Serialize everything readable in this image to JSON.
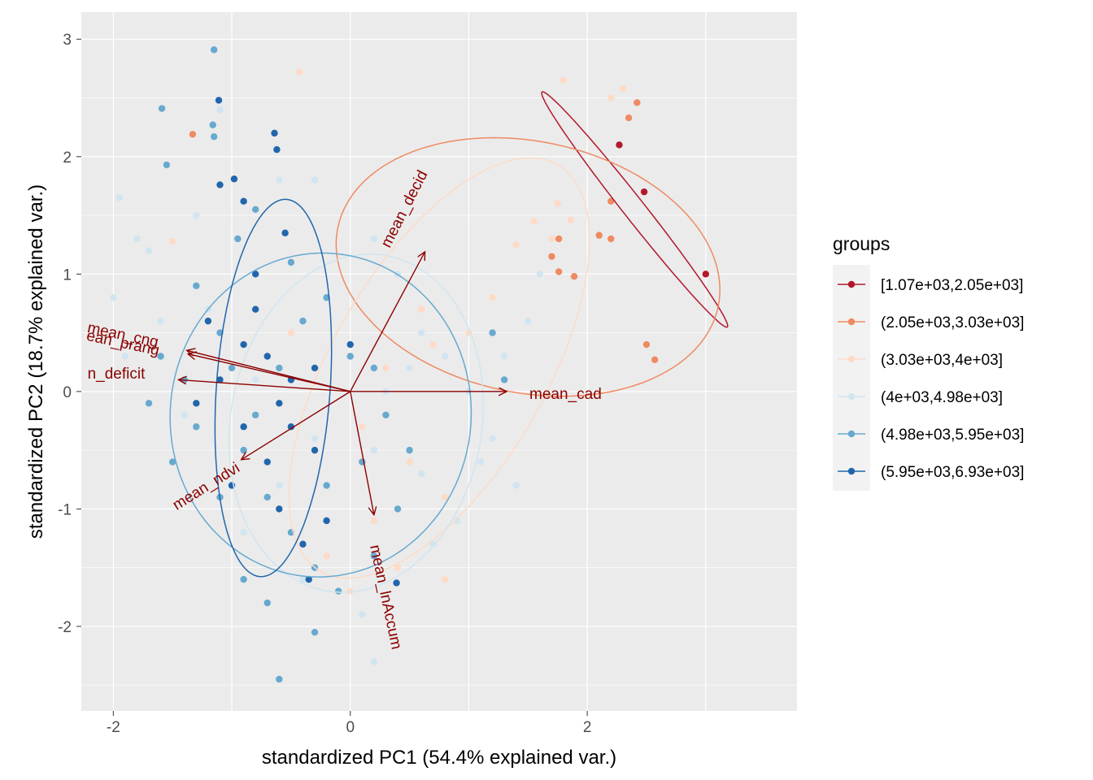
{
  "chart_data": {
    "type": "scatter",
    "xlabel": "standardized PC1 (54.4% explained var.)",
    "ylabel": "standardized PC2 (18.7% explained var.)",
    "xlim": [
      -2.27,
      3.77
    ],
    "ylim": [
      -2.72,
      3.23
    ],
    "x_ticks": [
      -2,
      0,
      2
    ],
    "y_ticks": [
      -2,
      -1,
      0,
      1,
      2,
      3
    ],
    "grid": true,
    "legend_position": "right",
    "legend_title": "groups",
    "series": [
      {
        "name": "[1.07e+03,2.05e+03]",
        "color": "#b2182b",
        "points": [
          [
            2.27,
            2.1
          ],
          [
            2.48,
            1.7
          ],
          [
            3.0,
            1.0
          ]
        ],
        "ellipse": {
          "cx": 2.4,
          "cy": 1.55,
          "rx": 1.27,
          "ry": 0.09,
          "angle": -52
        }
      },
      {
        "name": "(2.05e+03,3.03e+03]",
        "color": "#ef8a62",
        "points": [
          [
            -1.33,
            2.19
          ],
          [
            2.42,
            2.46
          ],
          [
            2.35,
            2.33
          ],
          [
            2.2,
            1.62
          ],
          [
            2.1,
            1.33
          ],
          [
            2.2,
            1.3
          ],
          [
            1.76,
            1.3
          ],
          [
            1.7,
            1.15
          ],
          [
            1.76,
            1.02
          ],
          [
            1.89,
            0.98
          ],
          [
            2.5,
            0.4
          ],
          [
            2.57,
            0.27
          ]
        ],
        "ellipse": {
          "cx": 1.5,
          "cy": 1.06,
          "rx": 1.64,
          "ry": 1.07,
          "angle": -12
        }
      },
      {
        "name": "(3.03e+03,4e+03]",
        "color": "#fddbc7",
        "points": [
          [
            -0.43,
            2.72
          ],
          [
            1.8,
            2.65
          ],
          [
            2.2,
            2.5
          ],
          [
            2.3,
            2.58
          ],
          [
            1.75,
            1.6
          ],
          [
            1.86,
            1.46
          ],
          [
            1.55,
            1.45
          ],
          [
            1.7,
            1.3
          ],
          [
            1.4,
            1.25
          ],
          [
            0.6,
            0.7
          ],
          [
            1.0,
            0.5
          ],
          [
            0.7,
            0.4
          ],
          [
            0.3,
            0.2
          ],
          [
            -1.5,
            1.28
          ],
          [
            -0.5,
            0.5
          ],
          [
            0.1,
            -0.3
          ],
          [
            0.5,
            -0.6
          ],
          [
            0.8,
            -0.9
          ],
          [
            -0.2,
            -1.4
          ],
          [
            0.4,
            -1.5
          ],
          [
            0.8,
            -1.6
          ],
          [
            0.0,
            -1.7
          ],
          [
            0.2,
            -1.1
          ],
          [
            1.2,
            0.8
          ]
        ],
        "ellipse": {
          "cx": 0.75,
          "cy": 0.2,
          "rx": 2.0,
          "ry": 0.9,
          "angle": 60
        }
      },
      {
        "name": "(4e+03,4.98e+03]",
        "color": "#d1e5f0",
        "points": [
          [
            -1.95,
            1.65
          ],
          [
            -2.0,
            0.8
          ],
          [
            -1.8,
            1.3
          ],
          [
            -1.7,
            1.2
          ],
          [
            -1.9,
            0.3
          ],
          [
            -1.1,
            2.4
          ],
          [
            -0.6,
            1.8
          ],
          [
            -0.3,
            1.8
          ],
          [
            0.2,
            1.3
          ],
          [
            0.4,
            1.0
          ],
          [
            0.6,
            0.5
          ],
          [
            0.8,
            0.3
          ],
          [
            1.0,
            0.0
          ],
          [
            1.2,
            -0.4
          ],
          [
            1.4,
            -0.8
          ],
          [
            0.9,
            -1.1
          ],
          [
            0.6,
            -0.7
          ],
          [
            0.2,
            -0.5
          ],
          [
            -0.3,
            -0.4
          ],
          [
            -0.6,
            -0.8
          ],
          [
            -0.9,
            -1.2
          ],
          [
            -0.4,
            -1.6
          ],
          [
            0.1,
            -1.9
          ],
          [
            0.2,
            -2.3
          ],
          [
            -1.4,
            -0.2
          ],
          [
            -1.6,
            0.6
          ],
          [
            -1.3,
            1.5
          ],
          [
            0.3,
            0.0
          ],
          [
            0.5,
            0.2
          ],
          [
            1.5,
            0.6
          ],
          [
            1.3,
            0.3
          ],
          [
            1.1,
            -0.6
          ],
          [
            0.7,
            -1.3
          ],
          [
            1.6,
            1.0
          ],
          [
            -0.8,
            0.1
          ],
          [
            -1.2,
            0.7
          ]
        ],
        "ellipse": {
          "cx": 0.05,
          "cy": -0.27,
          "rx": 1.45,
          "ry": 1.06,
          "angle": 80
        }
      },
      {
        "name": "(4.98e+03,5.95e+03]",
        "color": "#67a9cf",
        "points": [
          [
            -1.15,
            2.91
          ],
          [
            -1.59,
            2.41
          ],
          [
            -1.16,
            2.27
          ],
          [
            -1.15,
            2.17
          ],
          [
            -1.55,
            1.93
          ],
          [
            -0.8,
            1.55
          ],
          [
            -0.95,
            1.3
          ],
          [
            -1.3,
            0.9
          ],
          [
            -1.1,
            0.5
          ],
          [
            -1.4,
            0.1
          ],
          [
            -1.7,
            -0.1
          ],
          [
            -1.5,
            -0.6
          ],
          [
            -1.3,
            -0.3
          ],
          [
            -0.9,
            -0.5
          ],
          [
            -0.7,
            -0.9
          ],
          [
            -0.5,
            -1.2
          ],
          [
            -0.3,
            -1.5
          ],
          [
            -0.1,
            -1.7
          ],
          [
            0.2,
            -1.4
          ],
          [
            0.4,
            -1.0
          ],
          [
            0.5,
            -0.5
          ],
          [
            0.3,
            -0.2
          ],
          [
            0.0,
            0.3
          ],
          [
            -0.2,
            0.8
          ],
          [
            -0.5,
            1.1
          ],
          [
            -0.3,
            -2.05
          ],
          [
            -0.6,
            -2.45
          ],
          [
            -0.7,
            -1.8
          ],
          [
            -0.9,
            -1.6
          ],
          [
            -1.1,
            -0.9
          ],
          [
            -0.4,
            0.6
          ],
          [
            -0.6,
            0.2
          ],
          [
            -0.8,
            -0.2
          ],
          [
            -0.2,
            -0.8
          ],
          [
            0.1,
            -0.6
          ],
          [
            -1.0,
            0.2
          ],
          [
            0.2,
            0.2
          ],
          [
            1.2,
            0.5
          ],
          [
            1.3,
            0.1
          ],
          [
            -1.6,
            0.3
          ]
        ],
        "ellipse": {
          "cx": -0.25,
          "cy": -0.2,
          "rx": 1.38,
          "ry": 1.27,
          "angle": 85
        }
      },
      {
        "name": "(5.95e+03,6.93e+03]",
        "color": "#2166ac",
        "points": [
          [
            -1.11,
            2.48
          ],
          [
            -0.64,
            2.2
          ],
          [
            -0.62,
            2.06
          ],
          [
            -0.98,
            1.81
          ],
          [
            -1.1,
            1.76
          ],
          [
            -0.9,
            1.62
          ],
          [
            -0.55,
            1.35
          ],
          [
            -0.8,
            1.0
          ],
          [
            -1.2,
            0.6
          ],
          [
            -0.7,
            0.3
          ],
          [
            -0.5,
            0.1
          ],
          [
            -0.9,
            -0.3
          ],
          [
            -1.0,
            -0.8
          ],
          [
            -0.6,
            -1.0
          ],
          [
            -0.4,
            -1.3
          ],
          [
            -0.2,
            -1.1
          ],
          [
            0.0,
            0.4
          ],
          [
            -0.3,
            -0.5
          ],
          [
            -0.7,
            -0.6
          ],
          [
            -0.5,
            -0.3
          ],
          [
            -1.1,
            0.1
          ],
          [
            -0.8,
            0.7
          ],
          [
            -0.35,
            -1.6
          ],
          [
            0.39,
            -1.63
          ],
          [
            -0.6,
            -0.1
          ],
          [
            -1.3,
            -0.1
          ],
          [
            -0.9,
            0.4
          ],
          [
            -0.3,
            0.2
          ]
        ],
        "ellipse": {
          "cx": -0.65,
          "cy": 0.03,
          "rx": 1.61,
          "ry": 0.48,
          "angle": 86
        }
      }
    ],
    "arrows": [
      {
        "label": "mean_decid",
        "x": 0.63,
        "y": 1.19
      },
      {
        "label": "mean_cad",
        "x": 1.32,
        "y": 0.0
      },
      {
        "label": "mean_lnAccum",
        "x": 0.2,
        "y": -1.05
      },
      {
        "label": "mean_ndvi",
        "x": -0.92,
        "y": -0.58
      },
      {
        "label": "n_deficit",
        "x": -1.45,
        "y": 0.1
      },
      {
        "label": "mean_cng",
        "x": -1.38,
        "y": 0.35
      },
      {
        "label": "ean_prang",
        "x": -1.37,
        "y": 0.32
      }
    ]
  }
}
